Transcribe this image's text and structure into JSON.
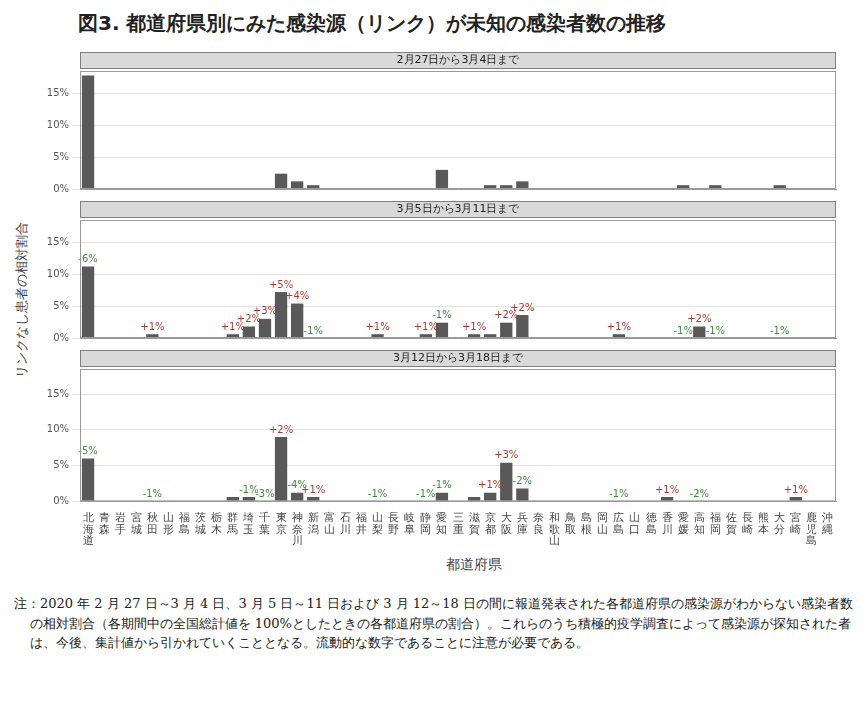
{
  "title": "図3. 都道府県別にみた感染源（リンク）が未知の感染者数の推移",
  "ylabel": "リンクなし患者の相対割合",
  "xlabel": "都道府県",
  "note": "注：2020 年 2 月 27 日～3 月 4 日、3 月 5 日～11 日および 3 月 12～18 日の間に報道発表された各都道府県の感染源がわからない感染者数の相対割合（各期間中の全国総計値を 100%としたときの各都道府県の割合）。これらのうち積極的疫学調査によって感染源が探知された者は、今後、集計値から引かれていくこととなる。流動的な数字であることに注意が必要である。",
  "chart_data": [
    {
      "type": "bar",
      "title": "2月27日から3月4日まで",
      "categories": [
        "北海道",
        "青森",
        "岩手",
        "宮城",
        "秋田",
        "山形",
        "福島",
        "茨城",
        "栃木",
        "群馬",
        "埼玉",
        "千葉",
        "東京",
        "神奈川",
        "新潟",
        "富山",
        "石川",
        "福井",
        "山梨",
        "長野",
        "岐阜",
        "静岡",
        "愛知",
        "三重",
        "滋賀",
        "京都",
        "大阪",
        "兵庫",
        "奈良",
        "和歌山",
        "鳥取",
        "島根",
        "岡山",
        "広島",
        "山口",
        "徳島",
        "香川",
        "愛媛",
        "高知",
        "福岡",
        "佐賀",
        "長崎",
        "熊本",
        "大分",
        "宮崎",
        "鹿児島",
        "沖縄"
      ],
      "values": [
        17.8,
        0,
        0,
        0,
        0,
        0,
        0,
        0,
        0,
        0,
        0,
        0,
        2.4,
        1.2,
        0.6,
        0,
        0,
        0,
        0,
        0,
        0,
        0,
        3.0,
        0,
        0,
        0.6,
        0.6,
        1.2,
        0,
        0,
        0,
        0,
        0,
        0,
        0,
        0,
        0,
        0.6,
        0,
        0.6,
        0,
        0,
        0,
        0.6,
        0,
        0,
        0
      ],
      "color": "#595959",
      "ylim": [
        0,
        18.5
      ],
      "yticks": [
        {
          "value": 0,
          "label": "0%"
        },
        {
          "value": 5,
          "label": "5%"
        },
        {
          "value": 10,
          "label": "10%"
        },
        {
          "value": 15,
          "label": "15%"
        }
      ],
      "grid": true,
      "tick_labels": "y"
    },
    {
      "type": "bar",
      "title": "3月5日から3月11日まで",
      "categories": [
        "北海道",
        "青森",
        "岩手",
        "宮城",
        "秋田",
        "山形",
        "福島",
        "茨城",
        "栃木",
        "群馬",
        "埼玉",
        "千葉",
        "東京",
        "神奈川",
        "新潟",
        "富山",
        "石川",
        "福井",
        "山梨",
        "長野",
        "岐阜",
        "静岡",
        "愛知",
        "三重",
        "滋賀",
        "京都",
        "大阪",
        "兵庫",
        "奈良",
        "和歌山",
        "鳥取",
        "島根",
        "岡山",
        "広島",
        "山口",
        "徳島",
        "香川",
        "愛媛",
        "高知",
        "福岡",
        "佐賀",
        "長崎",
        "熊本",
        "大分",
        "宮崎",
        "鹿児島",
        "沖縄"
      ],
      "values": [
        11.2,
        0,
        0,
        0,
        0.6,
        0,
        0,
        0,
        0,
        0.6,
        1.8,
        3.0,
        7.2,
        5.4,
        0,
        0,
        0,
        0,
        0.6,
        0,
        0,
        0.6,
        2.4,
        0,
        0.6,
        0.6,
        2.4,
        3.6,
        0,
        0,
        0,
        0,
        0,
        0.6,
        0,
        0,
        0,
        0,
        1.8,
        0,
        0,
        0,
        0,
        0,
        0,
        0,
        0
      ],
      "annotations": [
        "-6%",
        null,
        null,
        null,
        "+1%",
        null,
        null,
        null,
        null,
        "+1%",
        "+2%",
        "+3%",
        "+5%",
        "+4%",
        "-1%",
        null,
        null,
        null,
        "+1%",
        null,
        null,
        "+1%",
        "-1%",
        null,
        "+1%",
        null,
        "+2%",
        "+2%",
        null,
        null,
        null,
        null,
        null,
        "+1%",
        null,
        null,
        null,
        "-1%",
        "+2%",
        "-1%",
        null,
        null,
        null,
        "-1%",
        null,
        null,
        null
      ],
      "color": "#595959",
      "ylim": [
        0,
        18.5
      ],
      "yticks": [
        {
          "value": 0,
          "label": "0%"
        },
        {
          "value": 5,
          "label": "5%"
        },
        {
          "value": 10,
          "label": "10%"
        },
        {
          "value": 15,
          "label": "15%"
        }
      ],
      "grid": true,
      "tick_labels": "y"
    },
    {
      "type": "bar",
      "title": "3月12日から3月18日まで",
      "categories": [
        "北海道",
        "青森",
        "岩手",
        "宮城",
        "秋田",
        "山形",
        "福島",
        "茨城",
        "栃木",
        "群馬",
        "埼玉",
        "千葉",
        "東京",
        "神奈川",
        "新潟",
        "富山",
        "石川",
        "福井",
        "山梨",
        "長野",
        "岐阜",
        "静岡",
        "愛知",
        "三重",
        "滋賀",
        "京都",
        "大阪",
        "兵庫",
        "奈良",
        "和歌山",
        "鳥取",
        "島根",
        "岡山",
        "広島",
        "山口",
        "徳島",
        "香川",
        "愛媛",
        "高知",
        "福岡",
        "佐賀",
        "長崎",
        "熊本",
        "大分",
        "宮崎",
        "鹿児島",
        "沖縄"
      ],
      "values": [
        6.0,
        0,
        0,
        0,
        0,
        0,
        0,
        0,
        0,
        0.6,
        0.6,
        0,
        9.0,
        1.2,
        0.6,
        0,
        0,
        0,
        0,
        0,
        0,
        0,
        1.2,
        0,
        0.6,
        1.2,
        5.4,
        1.8,
        0,
        0,
        0,
        0,
        0,
        0,
        0,
        0,
        0.6,
        0,
        0,
        0,
        0,
        0,
        0,
        0,
        0.6,
        0,
        0
      ],
      "annotations": [
        "-5%",
        null,
        null,
        null,
        "-1%",
        null,
        null,
        null,
        null,
        null,
        "-1%",
        "-3%",
        "+2%",
        "-4%",
        "+1%",
        null,
        null,
        null,
        "-1%",
        null,
        null,
        "-1%",
        "-1%",
        null,
        null,
        "+1%",
        "+3%",
        "-2%",
        null,
        null,
        null,
        null,
        null,
        "-1%",
        null,
        null,
        "+1%",
        null,
        "-2%",
        null,
        null,
        null,
        null,
        null,
        "+1%",
        null,
        null
      ],
      "color": "#595959",
      "ylim": [
        0,
        18.5
      ],
      "yticks": [
        {
          "value": 0,
          "label": "0%"
        },
        {
          "value": 5,
          "label": "5%"
        },
        {
          "value": 10,
          "label": "10%"
        },
        {
          "value": 15,
          "label": "15%"
        }
      ],
      "grid": true
    }
  ]
}
